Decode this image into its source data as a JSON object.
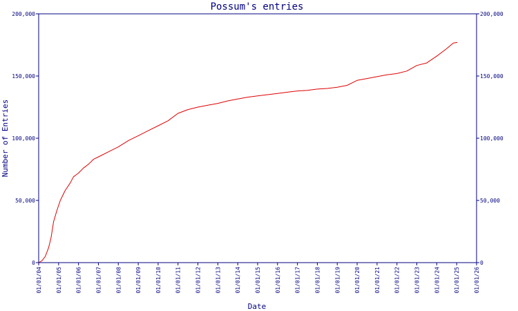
{
  "chart_data": {
    "type": "line",
    "title": "Possum's entries",
    "xlabel": "Date",
    "ylabel": "Number of Entries",
    "ylim": [
      0,
      200000
    ],
    "xlim": [
      "2004-01-01",
      "2026-01-01"
    ],
    "grid": false,
    "legend": "none",
    "y_ticks": [
      0,
      50000,
      100000,
      150000,
      200000
    ],
    "y_tick_labels": [
      "0",
      "50,000",
      "100,000",
      "150,000",
      "200,000"
    ],
    "x_ticks": [
      "2004-01-01",
      "2005-01-01",
      "2006-01-01",
      "2007-01-01",
      "2008-01-01",
      "2009-01-01",
      "2010-01-01",
      "2011-01-01",
      "2012-01-01",
      "2013-01-01",
      "2014-01-01",
      "2015-01-01",
      "2016-01-01",
      "2017-01-01",
      "2018-01-01",
      "2019-01-01",
      "2020-01-01",
      "2021-01-01",
      "2022-01-01",
      "2023-01-01",
      "2024-01-01",
      "2025-01-01",
      "2026-01-01"
    ],
    "x_tick_labels": [
      "01/01/04",
      "01/01/05",
      "01/01/06",
      "01/01/07",
      "01/01/08",
      "01/01/09",
      "01/01/10",
      "01/01/11",
      "01/01/12",
      "01/01/13",
      "01/01/14",
      "01/01/15",
      "01/01/16",
      "01/01/17",
      "01/01/18",
      "01/01/19",
      "01/01/20",
      "01/01/21",
      "01/01/22",
      "01/01/23",
      "01/01/24",
      "01/01/25",
      "01/01/26"
    ],
    "colors": {
      "axis": "#000080",
      "line": "#dd0000",
      "background": "#ffffff"
    },
    "series": [
      {
        "points": [
          [
            "2004-01-01",
            0
          ],
          [
            "2004-03-01",
            1500
          ],
          [
            "2004-05-01",
            5000
          ],
          [
            "2004-07-01",
            12000
          ],
          [
            "2004-08-15",
            20000
          ],
          [
            "2004-10-01",
            33000
          ],
          [
            "2004-12-01",
            42000
          ],
          [
            "2005-02-01",
            50000
          ],
          [
            "2005-05-01",
            58000
          ],
          [
            "2005-08-01",
            64000
          ],
          [
            "2005-10-01",
            69000
          ],
          [
            "2006-01-01",
            72000
          ],
          [
            "2006-04-01",
            76000
          ],
          [
            "2006-07-01",
            79000
          ],
          [
            "2006-10-01",
            83000
          ],
          [
            "2007-01-01",
            85000
          ],
          [
            "2007-07-01",
            89000
          ],
          [
            "2008-01-01",
            93000
          ],
          [
            "2008-07-01",
            98000
          ],
          [
            "2009-01-01",
            102000
          ],
          [
            "2009-07-01",
            106000
          ],
          [
            "2010-01-01",
            110000
          ],
          [
            "2010-07-01",
            114000
          ],
          [
            "2011-01-01",
            120000
          ],
          [
            "2011-07-01",
            123000
          ],
          [
            "2012-01-01",
            125000
          ],
          [
            "2012-07-01",
            126500
          ],
          [
            "2013-01-01",
            128000
          ],
          [
            "2013-07-01",
            130000
          ],
          [
            "2014-01-01",
            131500
          ],
          [
            "2014-07-01",
            133000
          ],
          [
            "2015-01-01",
            134000
          ],
          [
            "2015-07-01",
            135000
          ],
          [
            "2016-01-01",
            136000
          ],
          [
            "2016-07-01",
            137000
          ],
          [
            "2017-01-01",
            138000
          ],
          [
            "2017-07-01",
            138500
          ],
          [
            "2018-01-01",
            139500
          ],
          [
            "2018-07-01",
            140000
          ],
          [
            "2019-01-01",
            141000
          ],
          [
            "2019-07-01",
            142500
          ],
          [
            "2020-01-01",
            146500
          ],
          [
            "2020-07-01",
            148000
          ],
          [
            "2021-01-01",
            149500
          ],
          [
            "2021-07-01",
            151000
          ],
          [
            "2022-01-01",
            152000
          ],
          [
            "2022-07-01",
            154000
          ],
          [
            "2023-01-01",
            158500
          ],
          [
            "2023-07-01",
            160500
          ],
          [
            "2024-01-01",
            166000
          ],
          [
            "2024-07-01",
            172000
          ],
          [
            "2024-11-01",
            176500
          ],
          [
            "2025-01-15",
            177000
          ]
        ]
      }
    ]
  }
}
